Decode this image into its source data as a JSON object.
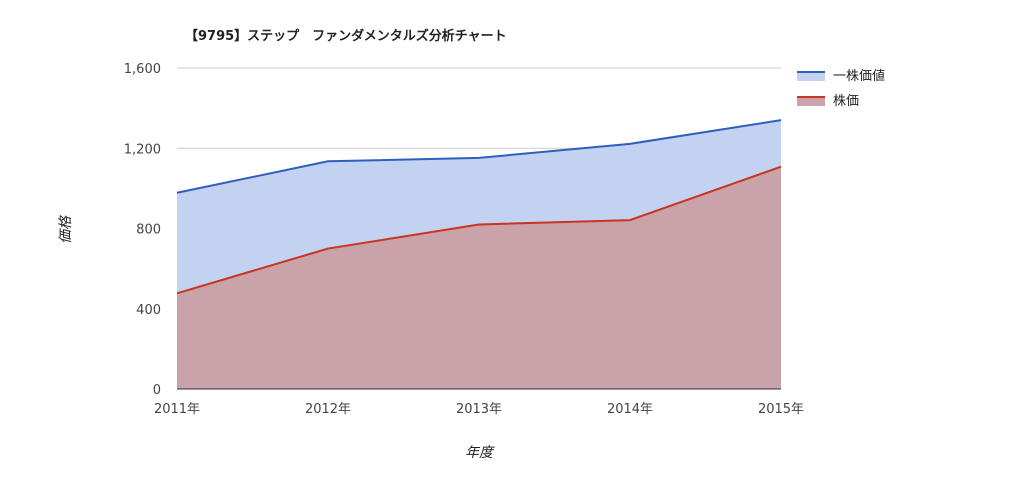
{
  "chart_data": {
    "type": "area",
    "title": "【9795】ステップ　ファンダメンタルズ分析チャート",
    "xlabel": "年度",
    "ylabel": "価格",
    "categories": [
      "2011年",
      "2012年",
      "2013年",
      "2014年",
      "2015年"
    ],
    "ylim": [
      0,
      1600
    ],
    "yticks": [
      0,
      400,
      800,
      1200,
      1600
    ],
    "ytick_labels": [
      "0",
      "400",
      "800",
      "1,200",
      "1,600"
    ],
    "grid": true,
    "legend_position": "right",
    "series": [
      {
        "name": "一株価値",
        "values": [
          978,
          1135,
          1152,
          1222,
          1340
        ],
        "line_color": "#2e5fbf",
        "fill_color": "#c3d2f0"
      },
      {
        "name": "株価",
        "values": [
          477,
          700,
          820,
          842,
          1108
        ],
        "line_color": "#c8341f",
        "fill_color": "#c9a2aa"
      }
    ]
  }
}
